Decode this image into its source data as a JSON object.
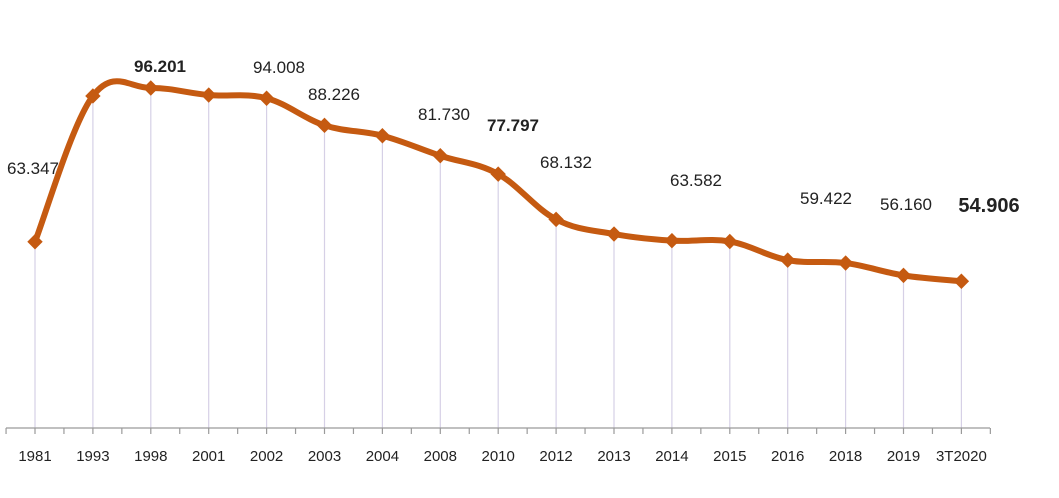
{
  "chart_data": {
    "type": "line",
    "title": "",
    "xlabel": "",
    "ylabel": "",
    "categories": [
      "1981",
      "1993",
      "1998",
      "2001",
      "2002",
      "2003",
      "2004",
      "2008",
      "2010",
      "2012",
      "2013",
      "2014",
      "2015",
      "2016",
      "2018",
      "2019",
      "3T2020"
    ],
    "series": [
      {
        "name": "",
        "color": "#c55a11",
        "values": [
          63.347,
          94.5,
          96.201,
          94.7,
          94.008,
          88.226,
          86.0,
          81.73,
          77.797,
          68.132,
          65.0,
          63.582,
          63.4,
          59.422,
          58.8,
          56.16,
          54.906
        ]
      }
    ],
    "data_labels": [
      {
        "index": 0,
        "text": "63.347",
        "style": "normal"
      },
      {
        "index": 2,
        "text": "96.201",
        "style": "bold"
      },
      {
        "index": 4,
        "text": "94.008",
        "style": "normal"
      },
      {
        "index": 5,
        "text": "88.226",
        "style": "normal"
      },
      {
        "index": 7,
        "text": "81.730",
        "style": "normal"
      },
      {
        "index": 8,
        "text": "77.797",
        "style": "bold"
      },
      {
        "index": 9,
        "text": "68.132",
        "style": "normal"
      },
      {
        "index": 11,
        "text": "63.582",
        "style": "normal"
      },
      {
        "index": 13,
        "text": "59.422",
        "style": "normal"
      },
      {
        "index": 15,
        "text": "56.160",
        "style": "normal"
      },
      {
        "index": 16,
        "text": "54.906",
        "style": "highlight",
        "color": "#e00000"
      }
    ],
    "legend": "none",
    "grid": false,
    "drop_lines": true
  }
}
